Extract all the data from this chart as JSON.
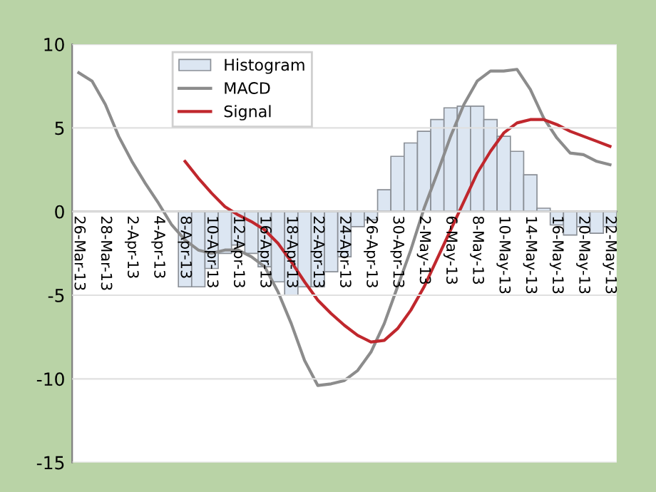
{
  "chart_data": {
    "type": "bar",
    "categories": [
      "26-Mar-13",
      null,
      "28-Mar-13",
      null,
      "2-Apr-13",
      null,
      "4-Apr-13",
      null,
      "8-Apr-13",
      null,
      "10-Apr-13",
      null,
      "12-Apr-13",
      null,
      "16-Apr-13",
      null,
      "18-Apr-13",
      null,
      "22-Apr-13",
      null,
      "24-Apr-13",
      null,
      "26-Apr-13",
      null,
      "30-Apr-13",
      null,
      "2-May-13",
      null,
      "6-May-13",
      null,
      "8-May-13",
      null,
      "10-May-13",
      null,
      "14-May-13",
      null,
      "16-May-13",
      null,
      "20-May-13",
      null,
      "22-May-13"
    ],
    "series": [
      {
        "name": "Histogram",
        "color": "#dce6f2",
        "values": [
          null,
          null,
          null,
          null,
          null,
          null,
          null,
          null,
          -4.5,
          -4.5,
          -3.4,
          -2.5,
          -2.0,
          -2.5,
          -3.3,
          -4.2,
          -5.0,
          -4.5,
          -4.5,
          -3.6,
          -2.7,
          -0.9,
          -0.5,
          1.3,
          3.3,
          4.1,
          4.8,
          5.5,
          6.2,
          6.3,
          6.3,
          5.5,
          4.5,
          3.6,
          2.2,
          0.2,
          -0.8,
          -1.4,
          -0.9,
          -1.3,
          -0.9
        ]
      },
      {
        "name": "MACD",
        "type": "line",
        "color": "#8c8c8c",
        "values": [
          8.3,
          7.8,
          6.4,
          4.5,
          3.0,
          1.7,
          0.5,
          -0.8,
          -1.7,
          -2.3,
          -2.5,
          -2.3,
          -2.3,
          -2.7,
          -3.3,
          -4.8,
          -6.7,
          -8.9,
          -10.4,
          -10.3,
          -10.1,
          -9.5,
          -8.4,
          -6.7,
          -4.5,
          -2.3,
          0.2,
          2.3,
          4.5,
          6.4,
          7.8,
          8.4,
          8.4,
          8.5,
          7.3,
          5.6,
          4.4,
          3.5,
          3.4,
          3.0,
          2.8
        ]
      },
      {
        "name": "Signal",
        "type": "line",
        "color": "#c0272d",
        "values": [
          null,
          null,
          null,
          null,
          null,
          null,
          null,
          null,
          3.0,
          2.0,
          1.1,
          0.3,
          -0.2,
          -0.6,
          -1.1,
          -1.9,
          -3.0,
          -4.2,
          -5.3,
          -6.1,
          -6.8,
          -7.4,
          -7.8,
          -7.7,
          -7.0,
          -5.9,
          -4.5,
          -2.8,
          -1.1,
          0.6,
          2.3,
          3.6,
          4.7,
          5.3,
          5.5,
          5.5,
          5.2,
          4.8,
          4.5,
          4.2,
          3.9
        ]
      }
    ],
    "ylim": [
      -15,
      10
    ],
    "yticks": [
      -15,
      -10,
      -5,
      0,
      5,
      10
    ],
    "grid": "y",
    "legend": "top left"
  }
}
